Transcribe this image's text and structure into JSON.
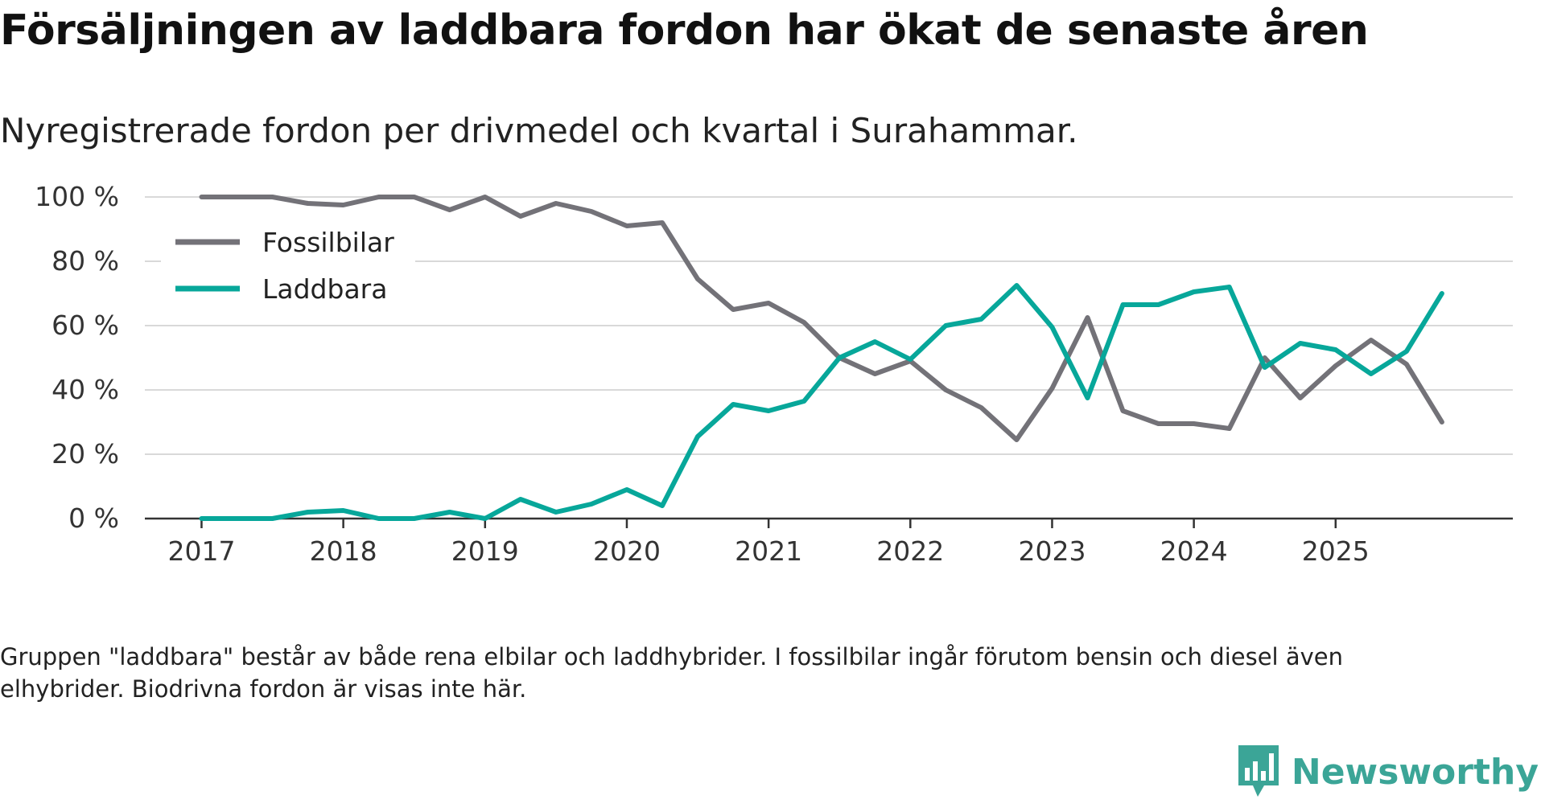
{
  "title": "Försäljningen av laddbara fordon har ökat de senaste åren",
  "subtitle": "Nyregistrerade fordon per drivmedel och kvartal i Surahammar.",
  "caption": "Gruppen \"laddbara\" består av både rena elbilar och laddhybrider. I fossilbilar ingår förutom bensin och diesel även elhybrider. Biodrivna fordon är visas inte här.",
  "brand": {
    "name": "Newsworthy",
    "logo": "newsworthy-logo-icon",
    "color": "#3ba597"
  },
  "chart_data": {
    "type": "line",
    "title": "Försäljningen av laddbara fordon har ökat de senaste åren",
    "xlabel": "",
    "ylabel": "",
    "ylim": [
      0,
      100
    ],
    "xlim": [
      2016.6,
      2026.25
    ],
    "y_ticks": [
      0,
      20,
      40,
      60,
      80,
      100
    ],
    "y_tick_labels": [
      "0 %",
      "20 %",
      "40 %",
      "60 %",
      "80 %",
      "100 %"
    ],
    "x_ticks": [
      2017,
      2018,
      2019,
      2020,
      2021,
      2022,
      2023,
      2024,
      2025
    ],
    "x_tick_labels": [
      "2017",
      "2018",
      "2019",
      "2020",
      "2021",
      "2022",
      "2023",
      "2024",
      "2025"
    ],
    "grid": true,
    "legend_position": "top-left",
    "x": [
      2017,
      2017.25,
      2017.5,
      2017.75,
      2018,
      2018.25,
      2018.5,
      2018.75,
      2019,
      2019.25,
      2019.5,
      2019.75,
      2020,
      2020.25,
      2020.5,
      2020.75,
      2021,
      2021.25,
      2021.5,
      2021.75,
      2022,
      2022.25,
      2022.5,
      2022.75,
      2023,
      2023.25,
      2023.5,
      2023.75,
      2024,
      2024.25,
      2024.5,
      2024.75,
      2025,
      2025.25,
      2025.5,
      2025.75
    ],
    "series": [
      {
        "name": "Fossilbilar",
        "color": "#737278",
        "values": [
          100,
          100,
          100,
          98,
          97.5,
          100,
          100,
          96,
          100,
          94,
          98,
          95.5,
          91,
          92,
          74.5,
          65,
          67,
          61,
          50,
          45,
          49,
          40,
          34.5,
          24.5,
          40.5,
          62.5,
          33.5,
          29.5,
          29.5,
          28,
          50,
          37.5,
          47.5,
          55.5,
          48,
          30
        ]
      },
      {
        "name": "Laddbara",
        "color": "#07a79a",
        "values": [
          0,
          0,
          0,
          2,
          2.5,
          0,
          0,
          2,
          0,
          6,
          2,
          4.5,
          9,
          4,
          25.5,
          35.5,
          33.5,
          36.5,
          50,
          55,
          49.5,
          60,
          62,
          72.5,
          59.5,
          37.5,
          66.5,
          66.5,
          70.5,
          72,
          47,
          54.5,
          52.5,
          45,
          52,
          70
        ]
      }
    ]
  }
}
